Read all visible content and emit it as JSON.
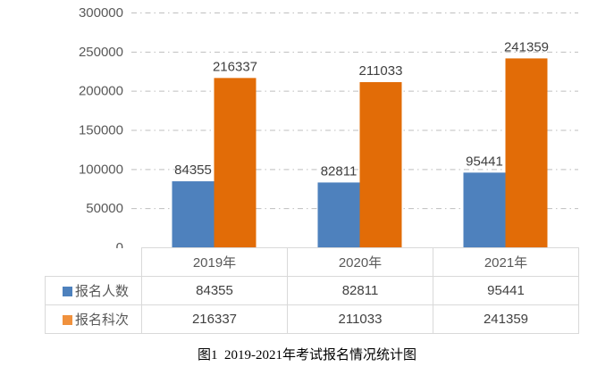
{
  "chart_data": {
    "type": "bar",
    "categories": [
      "2019年",
      "2020年",
      "2021年"
    ],
    "series": [
      {
        "name": "报名人数",
        "color": "#4E81BD",
        "swatch_color": "#4E81BD",
        "values": [
          84355,
          82811,
          95441
        ]
      },
      {
        "name": "报名科次",
        "color": "#E26C07",
        "swatch_color": "#F0913D",
        "values": [
          216337,
          211033,
          241359
        ]
      }
    ],
    "ylim": [
      0,
      300000
    ],
    "ytick_interval": 50000,
    "ytick_labels": [
      "300000",
      "250000",
      "200000",
      "150000",
      "100000",
      "50000",
      "0"
    ],
    "grid": "horizontal dash-dot gridlines",
    "data_labels_visible": true,
    "legend_position": "left column of data table",
    "data_table_visible": true
  },
  "caption": "图1  2019-2021年考试报名情况统计图",
  "styles": {
    "background": "#FFFFFF",
    "gridline_color": "#BFBFBF",
    "axis_tick_color": "#595959",
    "data_label_color": "#3F3F3F",
    "table_border_color": "#D9D9D9",
    "table_header_color": "#595959",
    "table_value_color": "#404040"
  }
}
